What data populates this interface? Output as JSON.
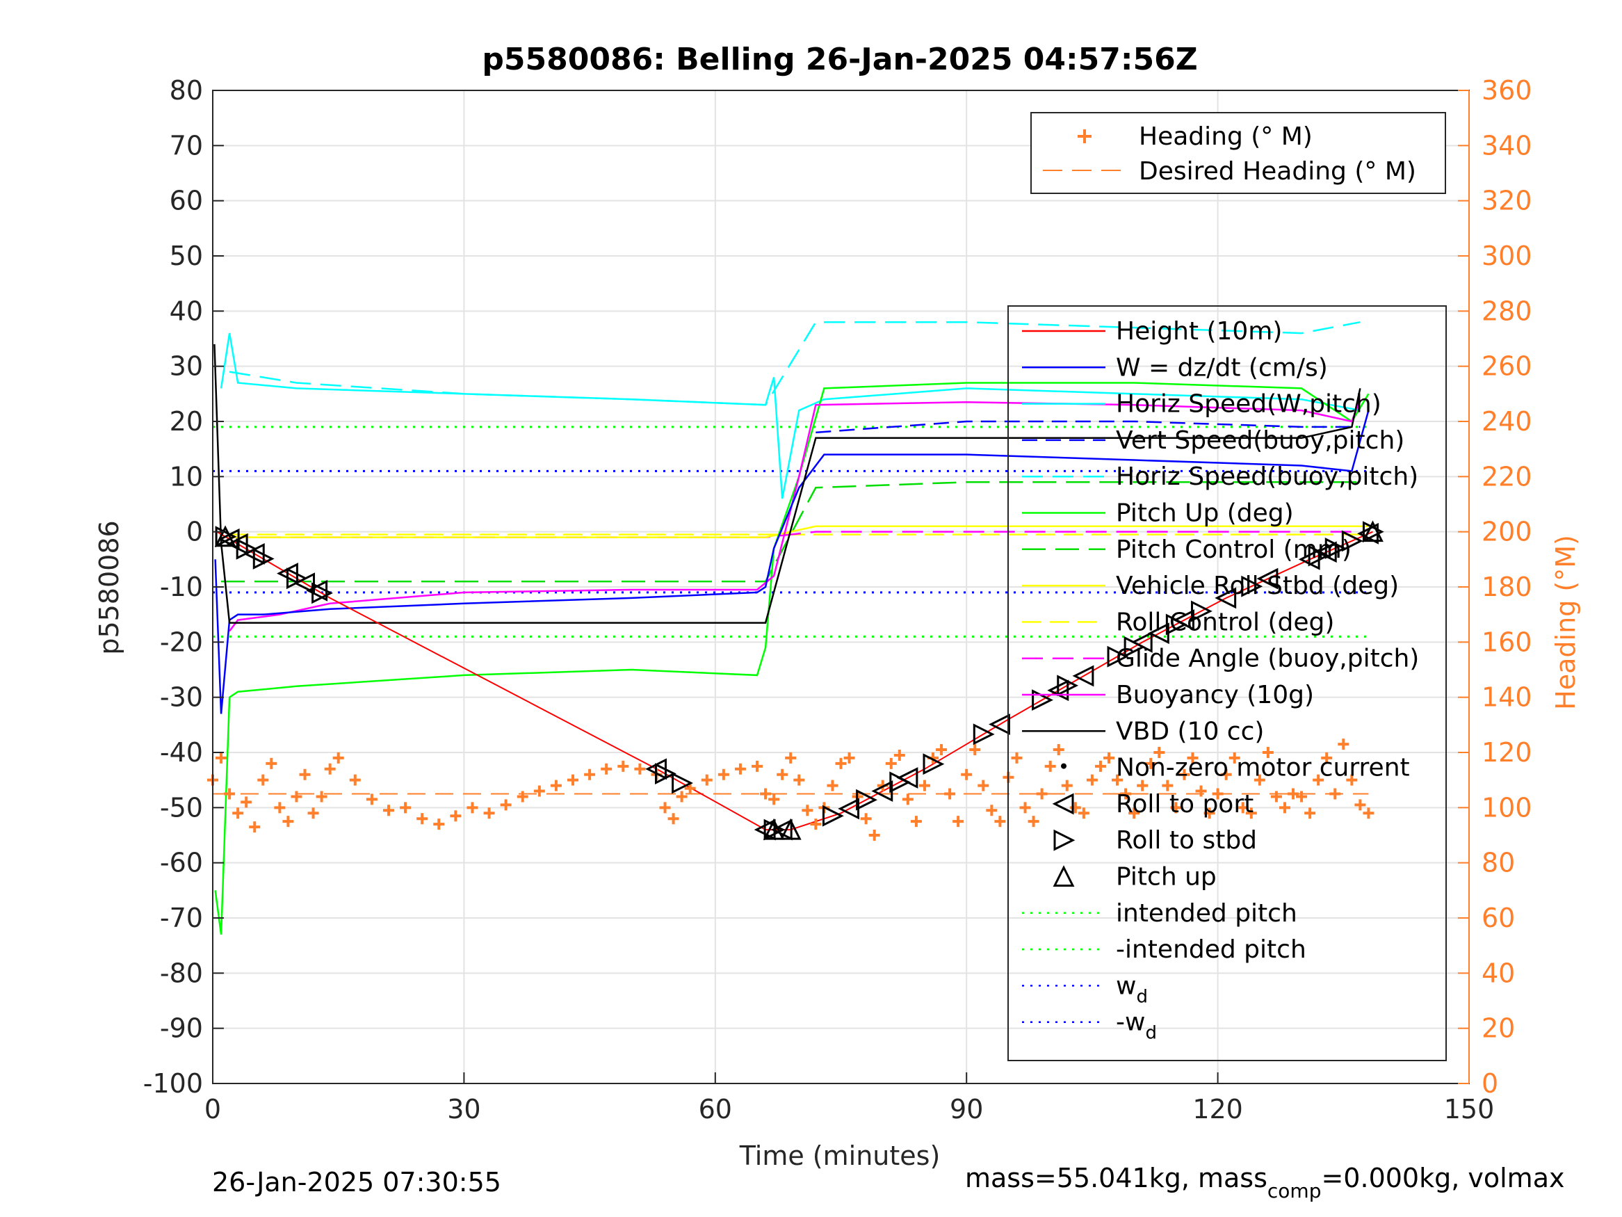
{
  "chart_data": {
    "type": "line",
    "title": "p5580086: Belling 26-Jan-2025 04:57:56Z",
    "xlabel": "Time (minutes)",
    "ylabel": "p5580086",
    "ylabel_right": "Heading (°M)",
    "xlim": [
      0,
      150
    ],
    "ylim": [
      -100,
      80
    ],
    "ylim_right": [
      0,
      360
    ],
    "xticks": [
      "0",
      "30",
      "60",
      "90",
      "120",
      "150"
    ],
    "yticks": [
      "80",
      "70",
      "60",
      "50",
      "40",
      "30",
      "20",
      "10",
      "0",
      "-10",
      "-20",
      "-30",
      "-40",
      "-50",
      "-60",
      "-70",
      "-80",
      "-90",
      "-100"
    ],
    "yticks_right": [
      "360",
      "340",
      "320",
      "300",
      "280",
      "260",
      "240",
      "220",
      "200",
      "180",
      "160",
      "140",
      "120",
      "100",
      "80",
      "60",
      "40",
      "20",
      "0"
    ],
    "grid": true,
    "legend_main_position": "right",
    "legend_heading_position": "top-right",
    "legend_heading": [
      "Heading (° M)",
      "Desired Heading (° M)"
    ],
    "legend_main": [
      "Height (10m)",
      "W = dz/dt (cm/s)",
      "Horiz Speed(W,pitch)",
      "Vert Speed(buoy,pitch)",
      "Horiz Speed(buoy,pitch)",
      "Pitch Up (deg)",
      "Pitch Control (mm)",
      "Vehicle Roll Stbd (deg)",
      "Roll Control (deg)",
      "Glide Angle (buoy,pitch)",
      "Buoyancy (10g)",
      "VBD (10 cc)",
      "Non-zero motor current",
      "Roll to port",
      "Roll to stbd",
      "Pitch up",
      "intended pitch",
      "-intended pitch",
      "w",
      "-w"
    ],
    "legend_subscript": "d",
    "colors": {
      "height": "#ff0000",
      "w": "#0000ff",
      "horiz_w": "#00ffff",
      "vert_buoy": "#0000ff",
      "horiz_buoy": "#00ffff",
      "pitch": "#00ff00",
      "pitch_ctrl": "#00dd00",
      "roll": "#ffff00",
      "glide": "#ff00ff",
      "buoyancy": "#ff00ff",
      "vbd": "#000000",
      "heading": "#ff7f2a",
      "intended_pitch": "#00ff00",
      "wd": "#0000ff"
    },
    "series": [
      {
        "name": "Height (10m)",
        "x": [
          0.5,
          14,
          53,
          66,
          69,
          75,
          85,
          95,
          103,
          111,
          121,
          131,
          138.5
        ],
        "values": [
          0,
          -12,
          -43,
          -54,
          -54,
          -51,
          -43,
          -34,
          -27,
          -20,
          -12,
          -5,
          0
        ]
      },
      {
        "name": "W = dz/dt (cm/s)",
        "x": [
          0.3,
          1,
          2,
          3,
          6,
          14,
          30,
          50,
          65,
          66,
          67,
          70,
          73,
          90,
          110,
          130,
          136,
          138
        ],
        "values": [
          -5,
          -33,
          -16,
          -15,
          -15,
          -14,
          -13,
          -12,
          -11,
          -10,
          -3,
          8,
          14,
          14,
          13,
          12,
          11,
          22
        ]
      },
      {
        "name": "Horiz Speed(W,pitch)",
        "x": [
          1,
          2,
          3,
          10,
          30,
          50,
          66,
          67,
          68,
          70,
          73,
          90,
          110,
          130,
          137
        ],
        "values": [
          26,
          36,
          27,
          26,
          25,
          24,
          23,
          28,
          6,
          22,
          24,
          26,
          25,
          24,
          22
        ]
      },
      {
        "name": "Horiz Speed(buoy,pitch)",
        "x": [
          2,
          10,
          30,
          50,
          66,
          72,
          90,
          110,
          130,
          137
        ],
        "values": [
          29,
          27,
          25,
          24,
          23,
          38,
          38,
          37,
          36,
          38
        ]
      },
      {
        "name": "Vert Speed(buoy,pitch)",
        "x": [
          72,
          90,
          110,
          130,
          137
        ],
        "values": [
          18,
          20,
          20,
          19,
          19
        ]
      },
      {
        "name": "Pitch Up (deg)",
        "x": [
          0.3,
          1,
          2,
          3,
          10,
          30,
          50,
          65,
          66,
          67,
          70,
          73,
          90,
          110,
          130,
          136,
          138
        ],
        "values": [
          -65,
          -73,
          -30,
          -29,
          -28,
          -26,
          -25,
          -26,
          -21,
          -3,
          10,
          26,
          27,
          27,
          26,
          20,
          25
        ]
      },
      {
        "name": "Pitch Control (mm)",
        "x": [
          1,
          10,
          66,
          72,
          90,
          110,
          130,
          137
        ],
        "values": [
          -9,
          -9,
          -9,
          8,
          9,
          9,
          9,
          9
        ]
      },
      {
        "name": "Vehicle Roll Stbd (deg)",
        "x": [
          2,
          10,
          30,
          50,
          66,
          72,
          90,
          110,
          130,
          138
        ],
        "values": [
          -1,
          -1,
          -1,
          -1,
          -1,
          1,
          1,
          1,
          1,
          1
        ]
      },
      {
        "name": "Glide Angle (buoy,pitch)",
        "x": [
          2,
          30,
          66,
          72,
          137
        ],
        "values": [
          -1,
          -1,
          -1,
          0,
          0
        ]
      },
      {
        "name": "Buoyancy (10g)",
        "x": [
          2,
          3,
          8,
          14,
          30,
          50,
          65,
          67,
          70,
          72,
          90,
          110,
          130,
          136,
          137
        ],
        "values": [
          -18,
          -16,
          -15,
          -13,
          -11,
          -10.5,
          -10.5,
          -8,
          10,
          23,
          23.5,
          23,
          22,
          20,
          24
        ]
      },
      {
        "name": "VBD (10 cc)",
        "x": [
          0.2,
          1,
          2,
          66,
          72,
          90,
          110,
          130,
          136,
          137
        ],
        "values": [
          34,
          -2,
          -16.5,
          -16.5,
          17,
          17,
          17,
          17,
          19,
          26
        ]
      },
      {
        "name": "intended pitch",
        "x": [
          0,
          138
        ],
        "values": [
          19,
          19
        ]
      },
      {
        "name": "-intended pitch",
        "x": [
          0,
          138
        ],
        "values": [
          -19,
          -19
        ]
      },
      {
        "name": "w",
        "x": [
          0,
          138
        ],
        "values": [
          11,
          11
        ]
      },
      {
        "name": "-w",
        "x": [
          0,
          138
        ],
        "values": [
          -11,
          -11
        ]
      },
      {
        "name": "Roll Control (deg)",
        "x": [
          2,
          138
        ],
        "values": [
          -0.5,
          -0.5
        ]
      },
      {
        "name": "Heading (° M)",
        "axis": "right",
        "values": []
      },
      {
        "name": "Desired Heading (° M)",
        "axis": "right",
        "x": [
          0,
          138
        ],
        "values": [
          105,
          105
        ]
      }
    ],
    "heading_points": [
      [
        0,
        110
      ],
      [
        1,
        118
      ],
      [
        2,
        105
      ],
      [
        3,
        98
      ],
      [
        4,
        102
      ],
      [
        5,
        93
      ],
      [
        6,
        110
      ],
      [
        7,
        116
      ],
      [
        8,
        100
      ],
      [
        9,
        95
      ],
      [
        10,
        104
      ],
      [
        11,
        112
      ],
      [
        12,
        98
      ],
      [
        13,
        104
      ],
      [
        14,
        114
      ],
      [
        15,
        118
      ],
      [
        17,
        110
      ],
      [
        19,
        103
      ],
      [
        21,
        99
      ],
      [
        23,
        100
      ],
      [
        25,
        96
      ],
      [
        27,
        94
      ],
      [
        29,
        97
      ],
      [
        31,
        100
      ],
      [
        33,
        98
      ],
      [
        35,
        101
      ],
      [
        37,
        104
      ],
      [
        39,
        106
      ],
      [
        41,
        108
      ],
      [
        43,
        110
      ],
      [
        45,
        112
      ],
      [
        47,
        114
      ],
      [
        49,
        115
      ],
      [
        51,
        114
      ],
      [
        53,
        112
      ],
      [
        54,
        100
      ],
      [
        55,
        96
      ],
      [
        56,
        104
      ],
      [
        57,
        107
      ],
      [
        59,
        110
      ],
      [
        61,
        112
      ],
      [
        63,
        114
      ],
      [
        65,
        115
      ],
      [
        66,
        105
      ],
      [
        67,
        103
      ],
      [
        68,
        112
      ],
      [
        69,
        118
      ],
      [
        70,
        110
      ],
      [
        71,
        99
      ],
      [
        72,
        94
      ],
      [
        73,
        100
      ],
      [
        74,
        108
      ],
      [
        75,
        116
      ],
      [
        76,
        118
      ],
      [
        77,
        104
      ],
      [
        78,
        96
      ],
      [
        79,
        90
      ],
      [
        80,
        108
      ],
      [
        81,
        116
      ],
      [
        82,
        119
      ],
      [
        83,
        103
      ],
      [
        84,
        95
      ],
      [
        85,
        108
      ],
      [
        86,
        118
      ],
      [
        87,
        121
      ],
      [
        88,
        105
      ],
      [
        89,
        95
      ],
      [
        90,
        112
      ],
      [
        91,
        121
      ],
      [
        92,
        108
      ],
      [
        93,
        99
      ],
      [
        94,
        95
      ],
      [
        95,
        111
      ],
      [
        96,
        118
      ],
      [
        97,
        100
      ],
      [
        98,
        95
      ],
      [
        99,
        105
      ],
      [
        100,
        115
      ],
      [
        101,
        121
      ],
      [
        102,
        108
      ],
      [
        103,
        100
      ],
      [
        104,
        98
      ],
      [
        105,
        110
      ],
      [
        106,
        115
      ],
      [
        107,
        118
      ],
      [
        108,
        110
      ],
      [
        109,
        105
      ],
      [
        110,
        98
      ],
      [
        111,
        108
      ],
      [
        112,
        116
      ],
      [
        113,
        120
      ],
      [
        114,
        108
      ],
      [
        115,
        100
      ],
      [
        116,
        112
      ],
      [
        117,
        118
      ],
      [
        118,
        106
      ],
      [
        119,
        98
      ],
      [
        120,
        105
      ],
      [
        121,
        112
      ],
      [
        122,
        118
      ],
      [
        123,
        100
      ],
      [
        124,
        98
      ],
      [
        125,
        110
      ],
      [
        126,
        120
      ],
      [
        127,
        104
      ],
      [
        128,
        100
      ],
      [
        129,
        105
      ],
      [
        130,
        104
      ],
      [
        131,
        98
      ],
      [
        132,
        110
      ],
      [
        133,
        118
      ],
      [
        134,
        105
      ],
      [
        135,
        123
      ],
      [
        136,
        110
      ],
      [
        137,
        101
      ],
      [
        138,
        98
      ]
    ],
    "annotations": {
      "roll_to_port_x": [
        2,
        3,
        5,
        9,
        11,
        12.5,
        53,
        66,
        68,
        76,
        80,
        83,
        94,
        101,
        104,
        111,
        113,
        116,
        121,
        126,
        131,
        133,
        138
      ],
      "roll_to_stbd_x": [
        1.5,
        4,
        6,
        10,
        13,
        54,
        56,
        67,
        74,
        78,
        82,
        86,
        92,
        99,
        102,
        108,
        110,
        115,
        118,
        124,
        132,
        134,
        136,
        138.5
      ],
      "pitch_up_x": [
        1.5,
        67,
        69,
        138.5
      ]
    }
  },
  "footer": {
    "date": "26-Jan-2025 07:30:55",
    "mass_prefix": "mass=55.041kg, mass",
    "mass_sub": "comp",
    "mass_suffix": "=0.000kg, volmax"
  }
}
